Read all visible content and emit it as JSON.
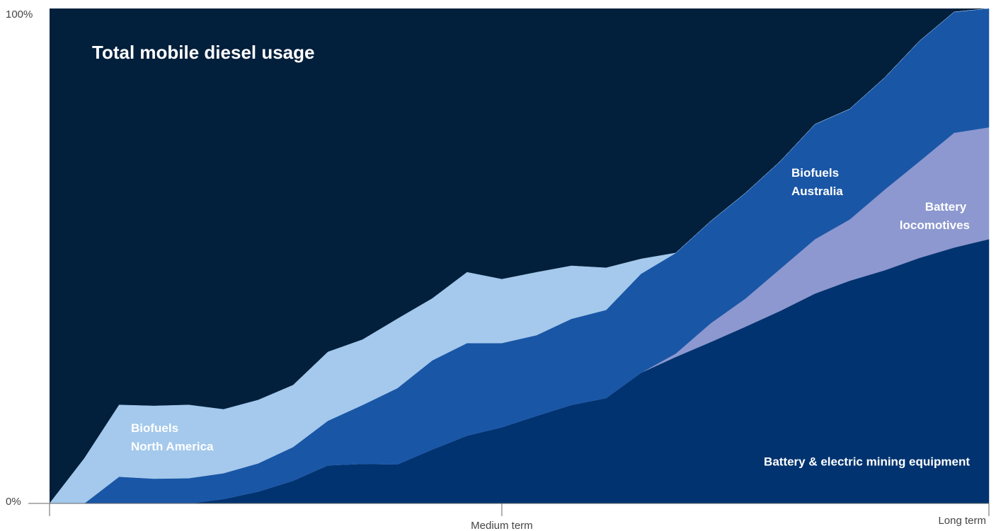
{
  "chart_data": {
    "type": "stacked-area",
    "title": "Total mobile diesel usage",
    "categories": [
      null,
      null,
      null,
      null,
      null,
      null,
      null,
      null,
      null,
      null,
      null,
      null,
      null,
      "Medium term",
      null,
      null,
      null,
      null,
      null,
      null,
      null,
      null,
      null,
      null,
      null,
      null,
      null,
      "Long term"
    ],
    "series": [
      {
        "name": "Battery & electric mining equipment",
        "color": "#00336f",
        "values": [
          0,
          0,
          0,
          0,
          0,
          0.9,
          2.4,
          4.6,
          7.7,
          8,
          7.9,
          10.9,
          13.7,
          15.4,
          17.7,
          19.9,
          21.3,
          26.4,
          29.6,
          32.6,
          35.7,
          38.9,
          42.4,
          45,
          47.1,
          49.6,
          51.7,
          53.4
        ]
      },
      {
        "name": "Battery locomotives",
        "color": "#8c98cf",
        "values": [
          0,
          0,
          0,
          0,
          0,
          0,
          0,
          0,
          0,
          0,
          0,
          0,
          0,
          0,
          0,
          0,
          0,
          0,
          0.7,
          3.8,
          5.7,
          8.5,
          11,
          12.4,
          16.3,
          19.5,
          23.2,
          22.6
        ]
      },
      {
        "name": "Biofuels Australia",
        "color": "#1a56a6",
        "values": [
          0,
          0,
          5.4,
          5,
          5.1,
          5.2,
          5.7,
          6.8,
          9,
          11.9,
          15.4,
          18,
          18.7,
          17,
          16.3,
          17.4,
          17.8,
          20,
          20.3,
          20.6,
          21.3,
          21.7,
          23.2,
          22.3,
          22.6,
          24.3,
          24.4,
          24
        ]
      },
      {
        "name": "Biofuels North America",
        "color": "#a4c9ec",
        "values": [
          0,
          9.1,
          14.5,
          14.7,
          14.8,
          12.9,
          12.8,
          12.5,
          13.9,
          13.2,
          14,
          12.5,
          14.3,
          12.9,
          12.7,
          10.7,
          8.5,
          3,
          0,
          0,
          0,
          0,
          0,
          0,
          0,
          0,
          0,
          0
        ]
      }
    ],
    "ylim": [
      0,
      100
    ],
    "yticks": [
      {
        "value": 0,
        "label": "0%"
      },
      {
        "value": 100,
        "label": "100%"
      }
    ],
    "background": "#021f3b"
  }
}
